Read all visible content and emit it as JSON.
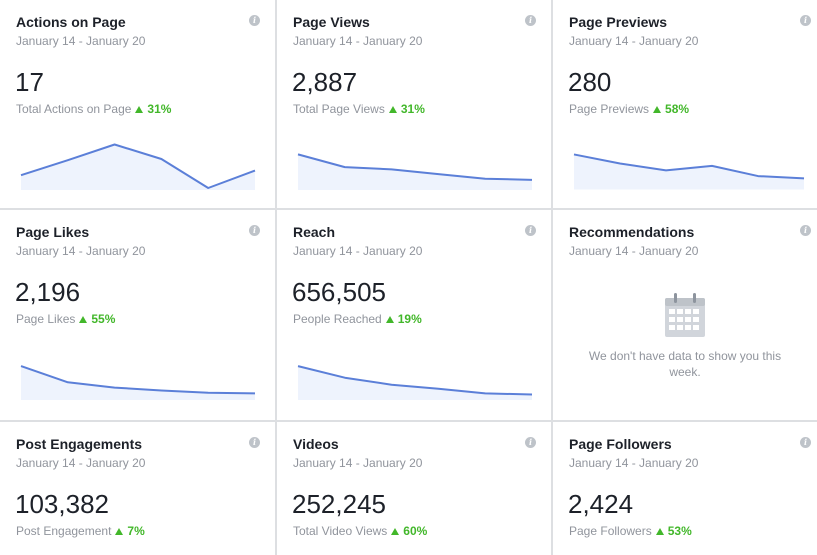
{
  "cards": [
    {
      "title": "Actions on Page",
      "date": "January 14 - January 20",
      "value": "17",
      "sub": "Total Actions on Page",
      "delta": "31%",
      "spark": [
        0.22,
        0.48,
        0.75,
        0.5,
        0.0,
        0.3
      ]
    },
    {
      "title": "Page Views",
      "date": "January 14 - January 20",
      "value": "2,887",
      "sub": "Total Page Views",
      "delta": "31%",
      "spark": [
        0.58,
        0.36,
        0.32,
        0.24,
        0.16,
        0.14
      ]
    },
    {
      "title": "Page Previews",
      "date": "January 14 - January 20",
      "value": "280",
      "sub": "Page Previews",
      "delta": "58%",
      "spark": [
        0.58,
        0.42,
        0.3,
        0.38,
        0.2,
        0.16
      ]
    },
    {
      "title": "Page Likes",
      "date": "January 14 - January 20",
      "value": "2,196",
      "sub": "Page Likes",
      "delta": "55%",
      "spark": [
        0.55,
        0.27,
        0.18,
        0.13,
        0.09,
        0.08
      ]
    },
    {
      "title": "Reach",
      "date": "January 14 - January 20",
      "value": "656,505",
      "sub": "People Reached",
      "delta": "19%",
      "spark": [
        0.55,
        0.35,
        0.23,
        0.16,
        0.08,
        0.06
      ]
    },
    {
      "title": "Recommendations",
      "date": "January 14 - January 20",
      "nodata": "We don't have data to show you this week."
    },
    {
      "title": "Post Engagements",
      "date": "January 14 - January 20",
      "value": "103,382",
      "sub": "Post Engagement",
      "delta": "7%"
    },
    {
      "title": "Videos",
      "date": "January 14 - January 20",
      "value": "252,245",
      "sub": "Total Video Views",
      "delta": "60%"
    },
    {
      "title": "Page Followers",
      "date": "January 14 - January 20",
      "value": "2,424",
      "sub": "Page Followers",
      "delta": "53%"
    }
  ],
  "info_icon_glyph": "i",
  "colors": {
    "spark_line": "#5b7fd8",
    "spark_fill": "#eef3fd",
    "delta_up": "#42b72a"
  }
}
